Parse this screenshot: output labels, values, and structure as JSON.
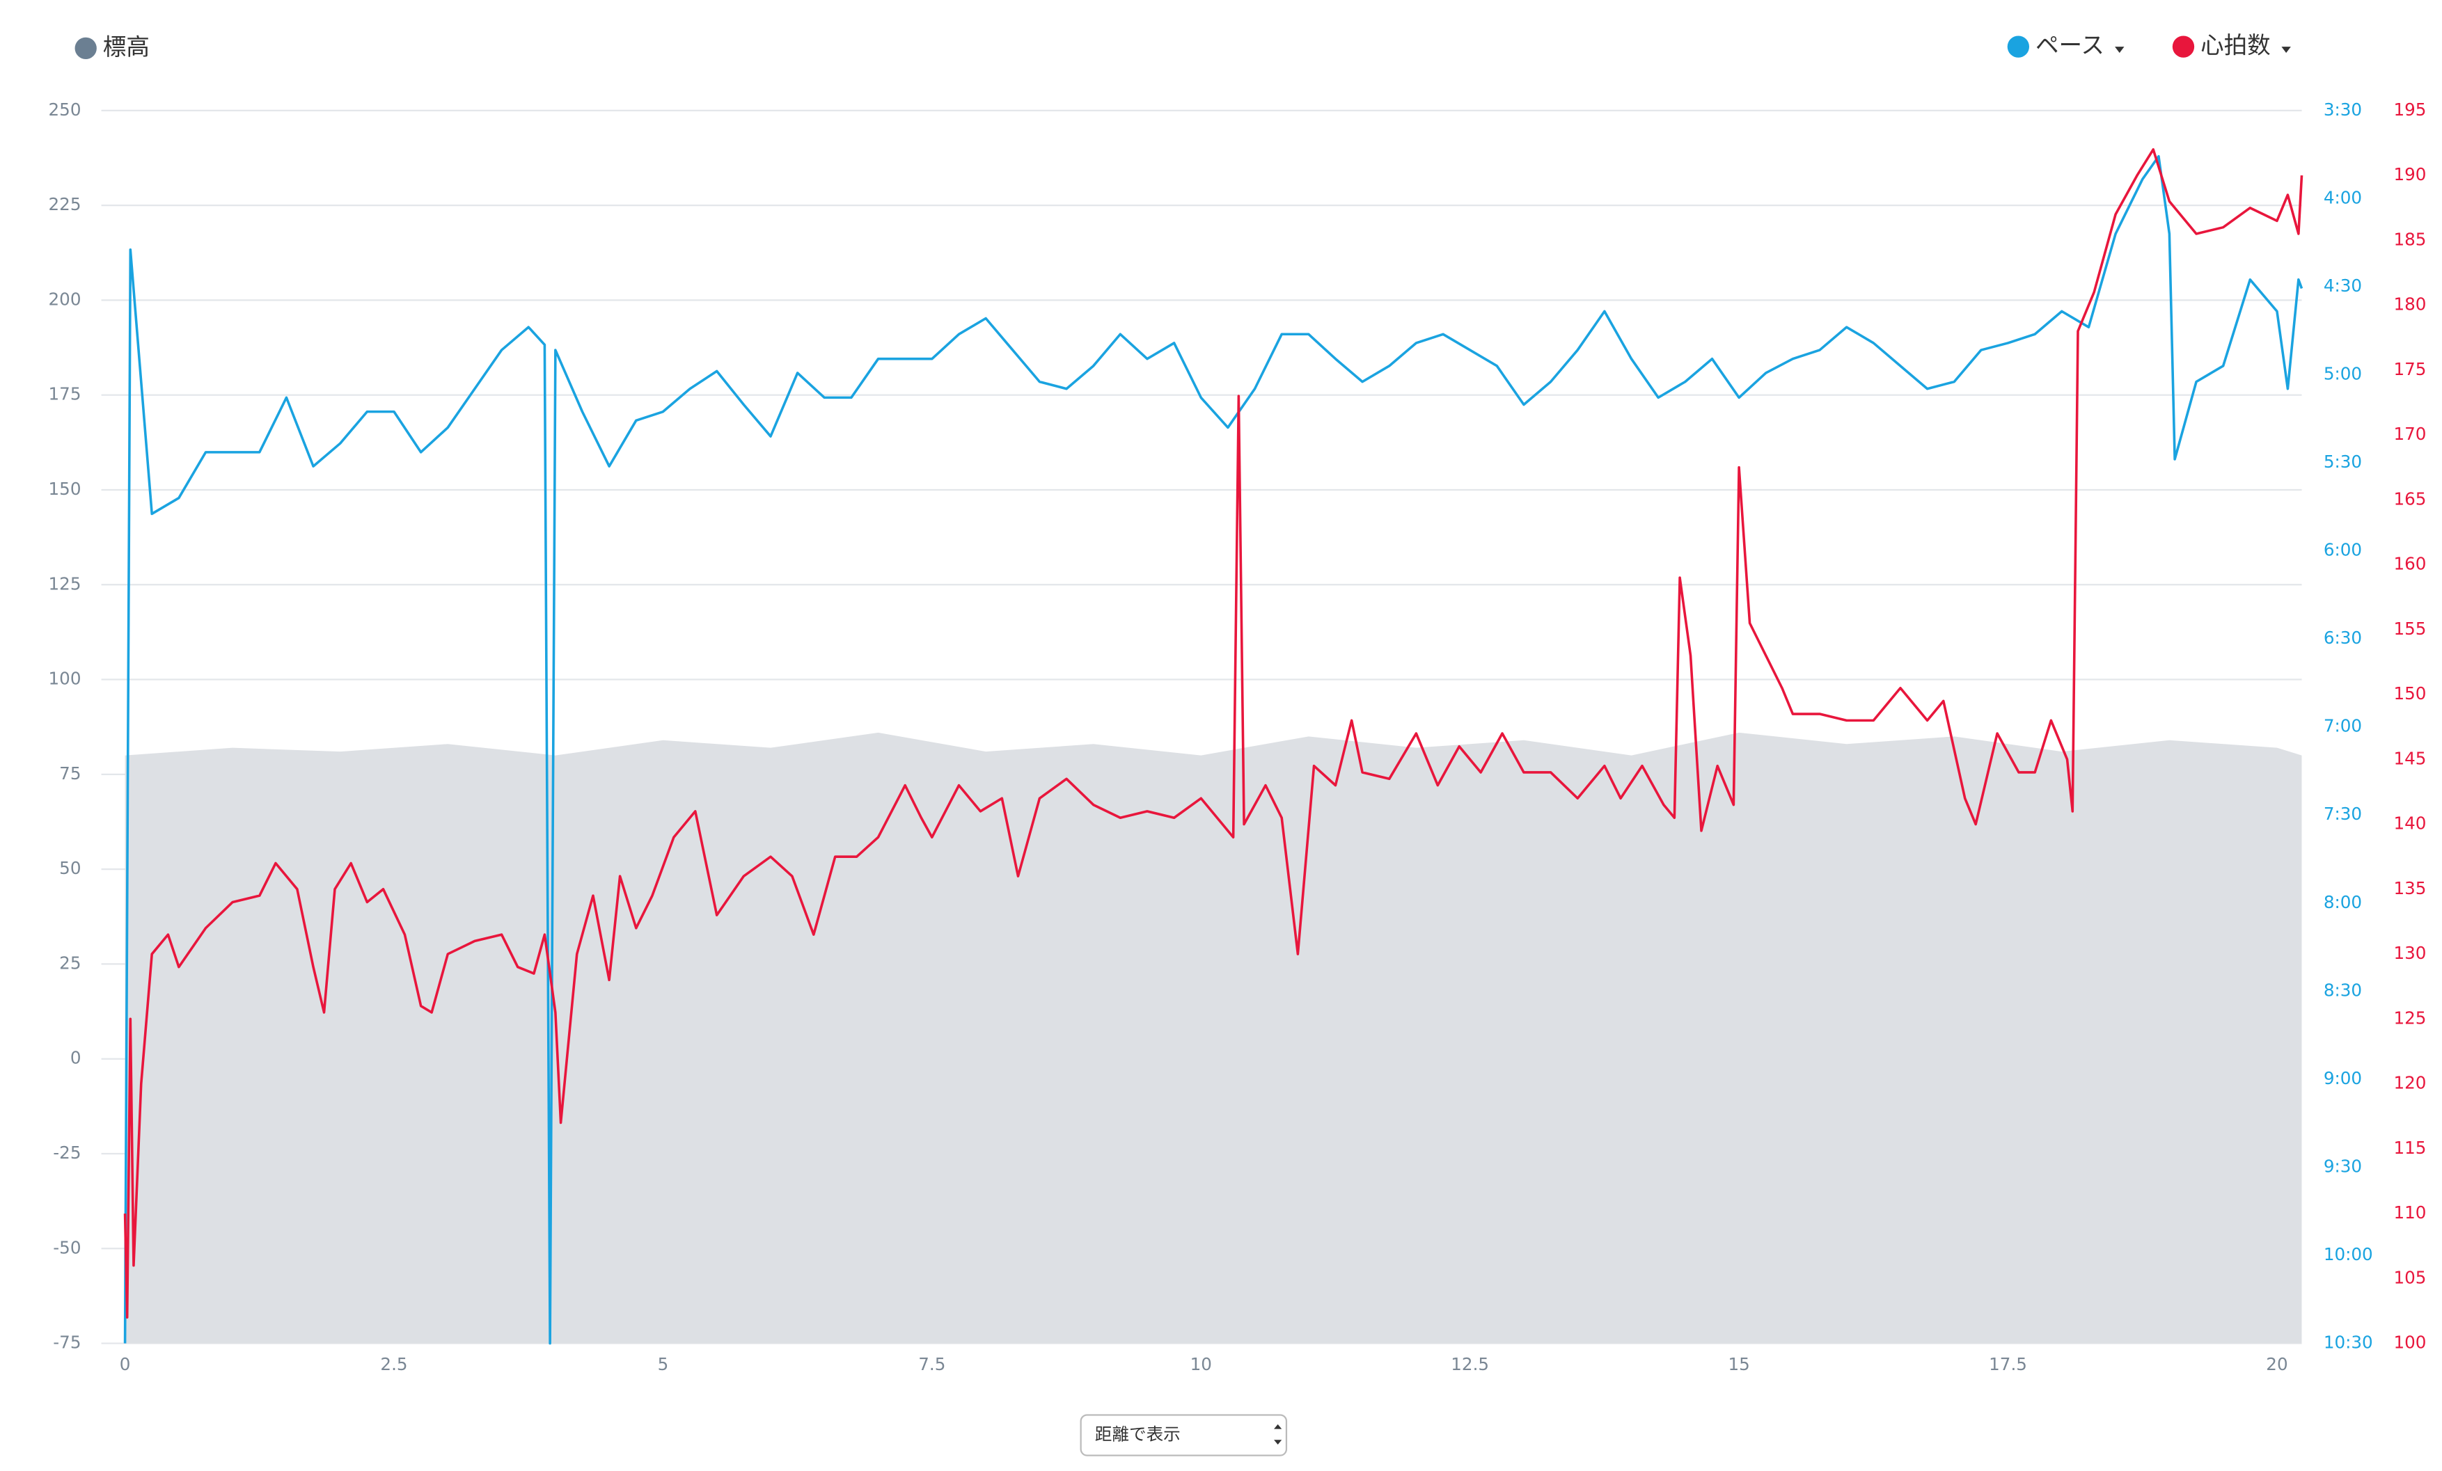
{
  "chart_data": {
    "type": "multi_axis_line",
    "xlim": [
      -0.22,
      20.23
    ],
    "xticks": [
      0,
      2.5,
      5,
      7.5,
      10,
      12.5,
      15,
      17.5,
      20
    ],
    "ylim": [
      -75,
      250
    ],
    "yticks": [
      -75,
      -50,
      -25,
      0,
      25,
      50,
      75,
      100,
      125,
      150,
      175,
      200,
      225,
      250
    ],
    "y2lim": [
      10.5,
      3.5
    ],
    "y2ticks": [
      {
        "value": 10.5,
        "label": "10:30"
      },
      {
        "value": 10,
        "label": "10:00"
      },
      {
        "value": 9.5,
        "label": "9:30"
      },
      {
        "value": 9,
        "label": "9:00"
      },
      {
        "value": 8.5,
        "label": "8:30"
      },
      {
        "value": 8,
        "label": "8:00"
      },
      {
        "value": 7.5,
        "label": "7:30"
      },
      {
        "value": 7,
        "label": "7:00"
      },
      {
        "value": 6.5,
        "label": "6:30"
      },
      {
        "value": 6,
        "label": "6:00"
      },
      {
        "value": 5.5,
        "label": "5:30"
      },
      {
        "value": 5,
        "label": "5:00"
      },
      {
        "value": 4.5,
        "label": "4:30"
      },
      {
        "value": 4,
        "label": "4:00"
      },
      {
        "value": 3.5,
        "label": "3:30"
      }
    ],
    "y3lim": [
      100,
      195
    ],
    "y3ticks": [
      100,
      105,
      110,
      115,
      120,
      125,
      130,
      135,
      140,
      145,
      150,
      155,
      160,
      165,
      170,
      175,
      180,
      185,
      190,
      195
    ],
    "grid": true,
    "series": [
      {
        "name": "標高",
        "color": "#6b7f92",
        "fill": "#dde0e4",
        "axis": "y",
        "kind": "area",
        "x": [
          0,
          1,
          2,
          3,
          4,
          5,
          6,
          7,
          8,
          9,
          10,
          11,
          12,
          13,
          14,
          15,
          16,
          17,
          18,
          19,
          20,
          20.23
        ],
        "values": [
          80,
          82,
          81,
          83,
          80,
          84,
          82,
          86,
          81,
          83,
          80,
          85,
          82,
          84,
          80,
          86,
          83,
          85,
          81,
          84,
          82,
          80
        ]
      },
      {
        "name": "ペース",
        "color": "#1aa3e0",
        "axis": "y2",
        "kind": "line",
        "x": [
          0.0,
          0.05,
          0.25,
          0.5,
          0.75,
          1.0,
          1.25,
          1.5,
          1.75,
          2.0,
          2.25,
          2.5,
          2.75,
          3.0,
          3.25,
          3.5,
          3.75,
          3.9,
          3.95,
          4.0,
          4.25,
          4.5,
          4.75,
          5.0,
          5.25,
          5.5,
          5.75,
          6.0,
          6.25,
          6.5,
          6.75,
          7.0,
          7.25,
          7.5,
          7.75,
          8.0,
          8.25,
          8.5,
          8.75,
          9.0,
          9.25,
          9.5,
          9.75,
          10.0,
          10.25,
          10.5,
          10.75,
          11.0,
          11.25,
          11.5,
          11.75,
          12.0,
          12.25,
          12.5,
          12.75,
          13.0,
          13.25,
          13.5,
          13.75,
          14.0,
          14.25,
          14.5,
          14.75,
          15.0,
          15.25,
          15.5,
          15.75,
          16.0,
          16.25,
          16.5,
          16.75,
          17.0,
          17.25,
          17.5,
          17.75,
          18.0,
          18.25,
          18.5,
          18.75,
          18.9,
          19.0,
          19.05,
          19.25,
          19.5,
          19.75,
          20.0,
          20.1,
          20.2,
          20.23
        ],
        "values": [
          10.5,
          4.29,
          5.79,
          5.7,
          5.44,
          5.44,
          5.44,
          5.13,
          5.52,
          5.39,
          5.21,
          5.21,
          5.44,
          5.3,
          5.08,
          4.86,
          4.73,
          4.83,
          10.5,
          4.86,
          5.21,
          5.52,
          5.26,
          5.21,
          5.08,
          4.98,
          5.17,
          5.35,
          4.99,
          5.13,
          5.13,
          4.91,
          4.91,
          4.91,
          4.77,
          4.68,
          4.86,
          5.04,
          5.08,
          4.95,
          4.77,
          4.91,
          4.82,
          5.13,
          5.3,
          5.08,
          4.77,
          4.77,
          4.91,
          5.04,
          4.95,
          4.82,
          4.77,
          4.86,
          4.95,
          5.17,
          5.04,
          4.86,
          4.64,
          4.91,
          5.13,
          5.04,
          4.91,
          5.13,
          4.99,
          4.91,
          4.86,
          4.73,
          4.82,
          4.95,
          5.08,
          5.04,
          4.86,
          4.82,
          4.77,
          4.64,
          4.73,
          4.2,
          3.89,
          3.76,
          4.2,
          5.48,
          5.04,
          4.95,
          4.46,
          4.64,
          5.08,
          4.46,
          4.51
        ]
      },
      {
        "name": "心拍数",
        "color": "#e8163c",
        "axis": "y3",
        "kind": "line",
        "x": [
          0.0,
          0.02,
          0.05,
          0.08,
          0.15,
          0.25,
          0.4,
          0.5,
          0.75,
          1.0,
          1.25,
          1.4,
          1.6,
          1.75,
          1.85,
          1.95,
          2.1,
          2.25,
          2.4,
          2.6,
          2.75,
          2.85,
          3.0,
          3.25,
          3.5,
          3.65,
          3.8,
          3.9,
          4.0,
          4.05,
          4.2,
          4.35,
          4.5,
          4.6,
          4.75,
          4.9,
          5.1,
          5.3,
          5.5,
          5.75,
          6.0,
          6.2,
          6.4,
          6.6,
          6.8,
          7.0,
          7.25,
          7.4,
          7.5,
          7.75,
          7.95,
          8.15,
          8.3,
          8.5,
          8.75,
          9.0,
          9.25,
          9.5,
          9.75,
          10.0,
          10.3,
          10.35,
          10.4,
          10.6,
          10.75,
          10.9,
          11.05,
          11.25,
          11.4,
          11.5,
          11.75,
          12.0,
          12.2,
          12.4,
          12.6,
          12.8,
          13.0,
          13.25,
          13.5,
          13.75,
          13.9,
          14.1,
          14.3,
          14.4,
          14.45,
          14.55,
          14.65,
          14.8,
          14.95,
          15.0,
          15.1,
          15.25,
          15.4,
          15.5,
          15.75,
          16.0,
          16.25,
          16.5,
          16.75,
          16.9,
          17.1,
          17.2,
          17.4,
          17.6,
          17.75,
          17.9,
          18.05,
          18.1,
          18.15,
          18.3,
          18.5,
          18.7,
          18.85,
          19.0,
          19.25,
          19.5,
          19.75,
          20.0,
          20.1,
          20.2,
          20.23
        ],
        "values": [
          110,
          102,
          125,
          106,
          120,
          130,
          131.5,
          129,
          132,
          134,
          134.5,
          137,
          135,
          129,
          125.5,
          135,
          137,
          134,
          135,
          131.5,
          126,
          125.5,
          130,
          131,
          131.5,
          129,
          128.5,
          131.5,
          125.5,
          117,
          130,
          134.5,
          128,
          136,
          132,
          134.5,
          139,
          141,
          133,
          136,
          137.5,
          136,
          131.5,
          137.5,
          137.5,
          139,
          143,
          140.5,
          139,
          143,
          141,
          142,
          136,
          142,
          143.5,
          141.5,
          140.5,
          141,
          140.5,
          142,
          139,
          173,
          140,
          143,
          140.5,
          130,
          144.5,
          143,
          148,
          144,
          143.5,
          147,
          143,
          146,
          144,
          147,
          144,
          144,
          142,
          144.5,
          142,
          144.5,
          141.5,
          140.5,
          159,
          153,
          139.5,
          144.5,
          141.5,
          167.5,
          155.5,
          153,
          150.5,
          148.5,
          148.5,
          148,
          148,
          150.5,
          148,
          149.5,
          142,
          140,
          147,
          144,
          144,
          148,
          145,
          141,
          178,
          181,
          187,
          190,
          192,
          188,
          185.5,
          186,
          187.5,
          186.5,
          188.5,
          185.5,
          190
        ]
      }
    ]
  },
  "controls": {
    "x_mode": "距離で表示"
  }
}
